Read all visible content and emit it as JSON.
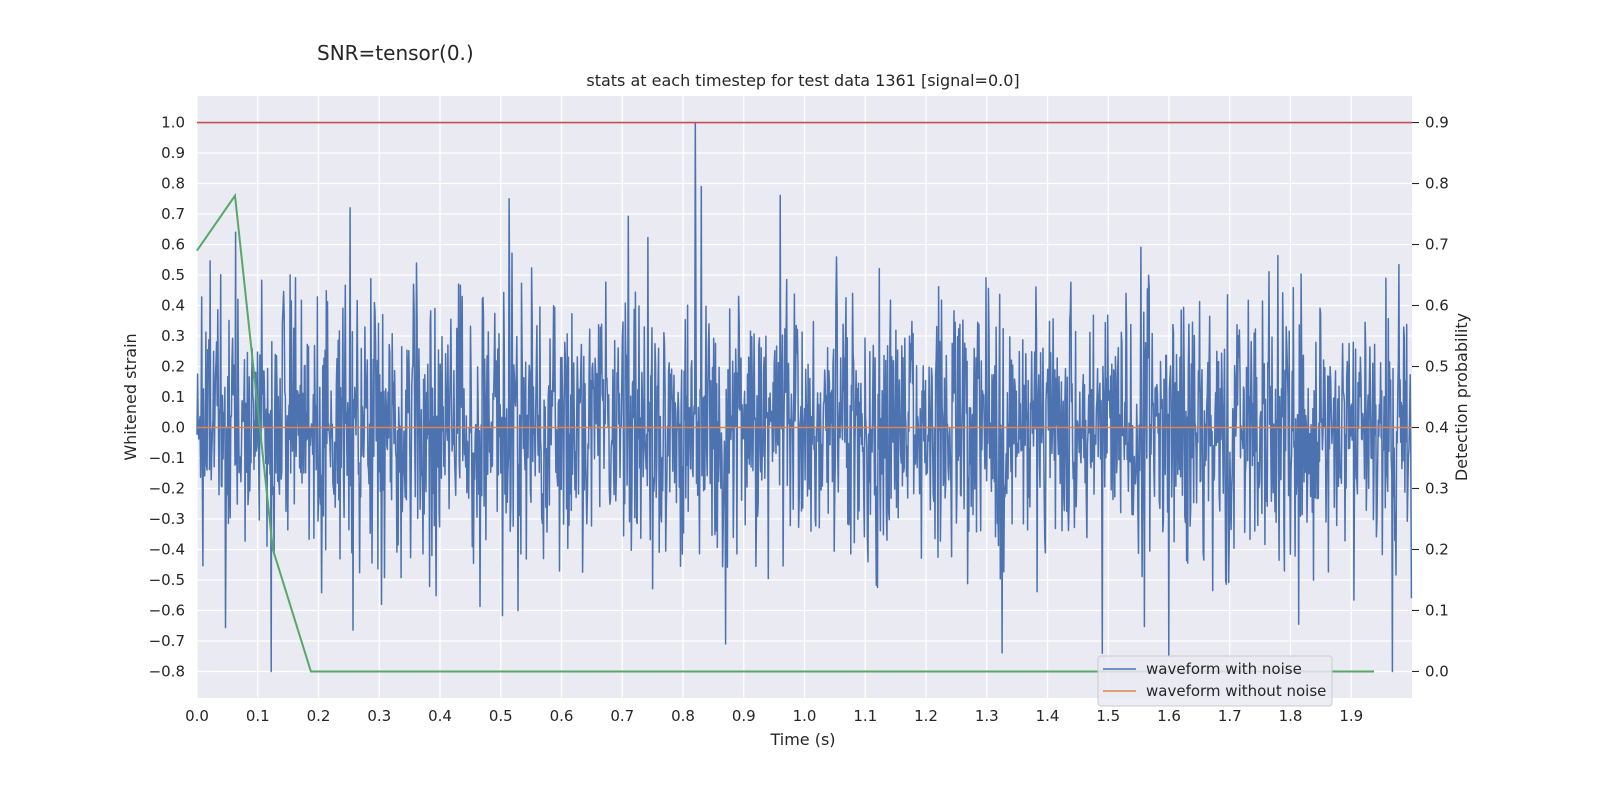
{
  "chart_data": {
    "type": "line",
    "suptitle": "SNR=tensor(0.)",
    "title": "stats at each timestep for test data 1361 [signal=0.0]",
    "xlabel": "Time (s)",
    "ylabel_left": "Whitened strain",
    "ylabel_right": "Detection probability",
    "xlim": [
      0.0,
      2.0
    ],
    "ylim_left": [
      -0.887,
      1.087
    ],
    "ylim_right": [
      -0.0435,
      0.9435
    ],
    "x_ticks": [
      "0.0",
      "0.1",
      "0.2",
      "0.3",
      "0.4",
      "0.5",
      "0.6",
      "0.7",
      "0.8",
      "0.9",
      "1.0",
      "1.1",
      "1.2",
      "1.3",
      "1.4",
      "1.5",
      "1.6",
      "1.7",
      "1.8",
      "1.9"
    ],
    "y_ticks_left": [
      "1.0",
      "0.9",
      "0.8",
      "0.7",
      "0.6",
      "0.5",
      "0.4",
      "0.3",
      "0.2",
      "0.1",
      "0.0",
      "−0.1",
      "−0.2",
      "−0.3",
      "−0.4",
      "−0.5",
      "−0.6",
      "−0.7",
      "−0.8"
    ],
    "y_ticks_right": [
      "0.9",
      "0.8",
      "0.7",
      "0.6",
      "0.5",
      "0.4",
      "0.3",
      "0.2",
      "0.1",
      "0.0"
    ],
    "grid": true,
    "legend_position": "lower-right",
    "legend": [
      "waveform with noise",
      "waveform without noise"
    ],
    "colors": {
      "noise": "#4c72b0",
      "clean": "#dd8452",
      "prob": "#55a868",
      "threshold": "#c44e52",
      "background": "#eaeaf2",
      "grid": "#ffffff"
    },
    "threshold": {
      "axis": "left",
      "value": 1.0
    },
    "series": [
      {
        "name": "waveform with noise",
        "axis": "left",
        "generated": true,
        "samples": 2048,
        "x_range": [
          0.0,
          2.0
        ],
        "amplitude_std": 0.22,
        "seed": 1361,
        "min": -0.8,
        "max": 1.0,
        "peaks": [
          [
            0.063,
            0.64
          ],
          [
            0.122,
            -0.8
          ],
          [
            0.252,
            0.72
          ],
          [
            0.514,
            0.75
          ],
          [
            0.82,
            1.0
          ],
          [
            0.83,
            0.79
          ],
          [
            0.87,
            -0.71
          ],
          [
            1.49,
            -0.74
          ],
          [
            1.6,
            -0.75
          ]
        ]
      },
      {
        "name": "waveform without noise",
        "axis": "left",
        "x": [
          0.0,
          2.0
        ],
        "y": [
          0.0,
          0.0
        ]
      },
      {
        "name": "detection probability",
        "axis": "right",
        "x": [
          0.0,
          0.0625,
          0.125,
          0.1875,
          0.25,
          0.5,
          1.0,
          1.5,
          1.9375
        ],
        "y": [
          0.69,
          0.78,
          0.2,
          0.0,
          0.0,
          0.0,
          0.0,
          0.0,
          0.0
        ]
      }
    ]
  }
}
